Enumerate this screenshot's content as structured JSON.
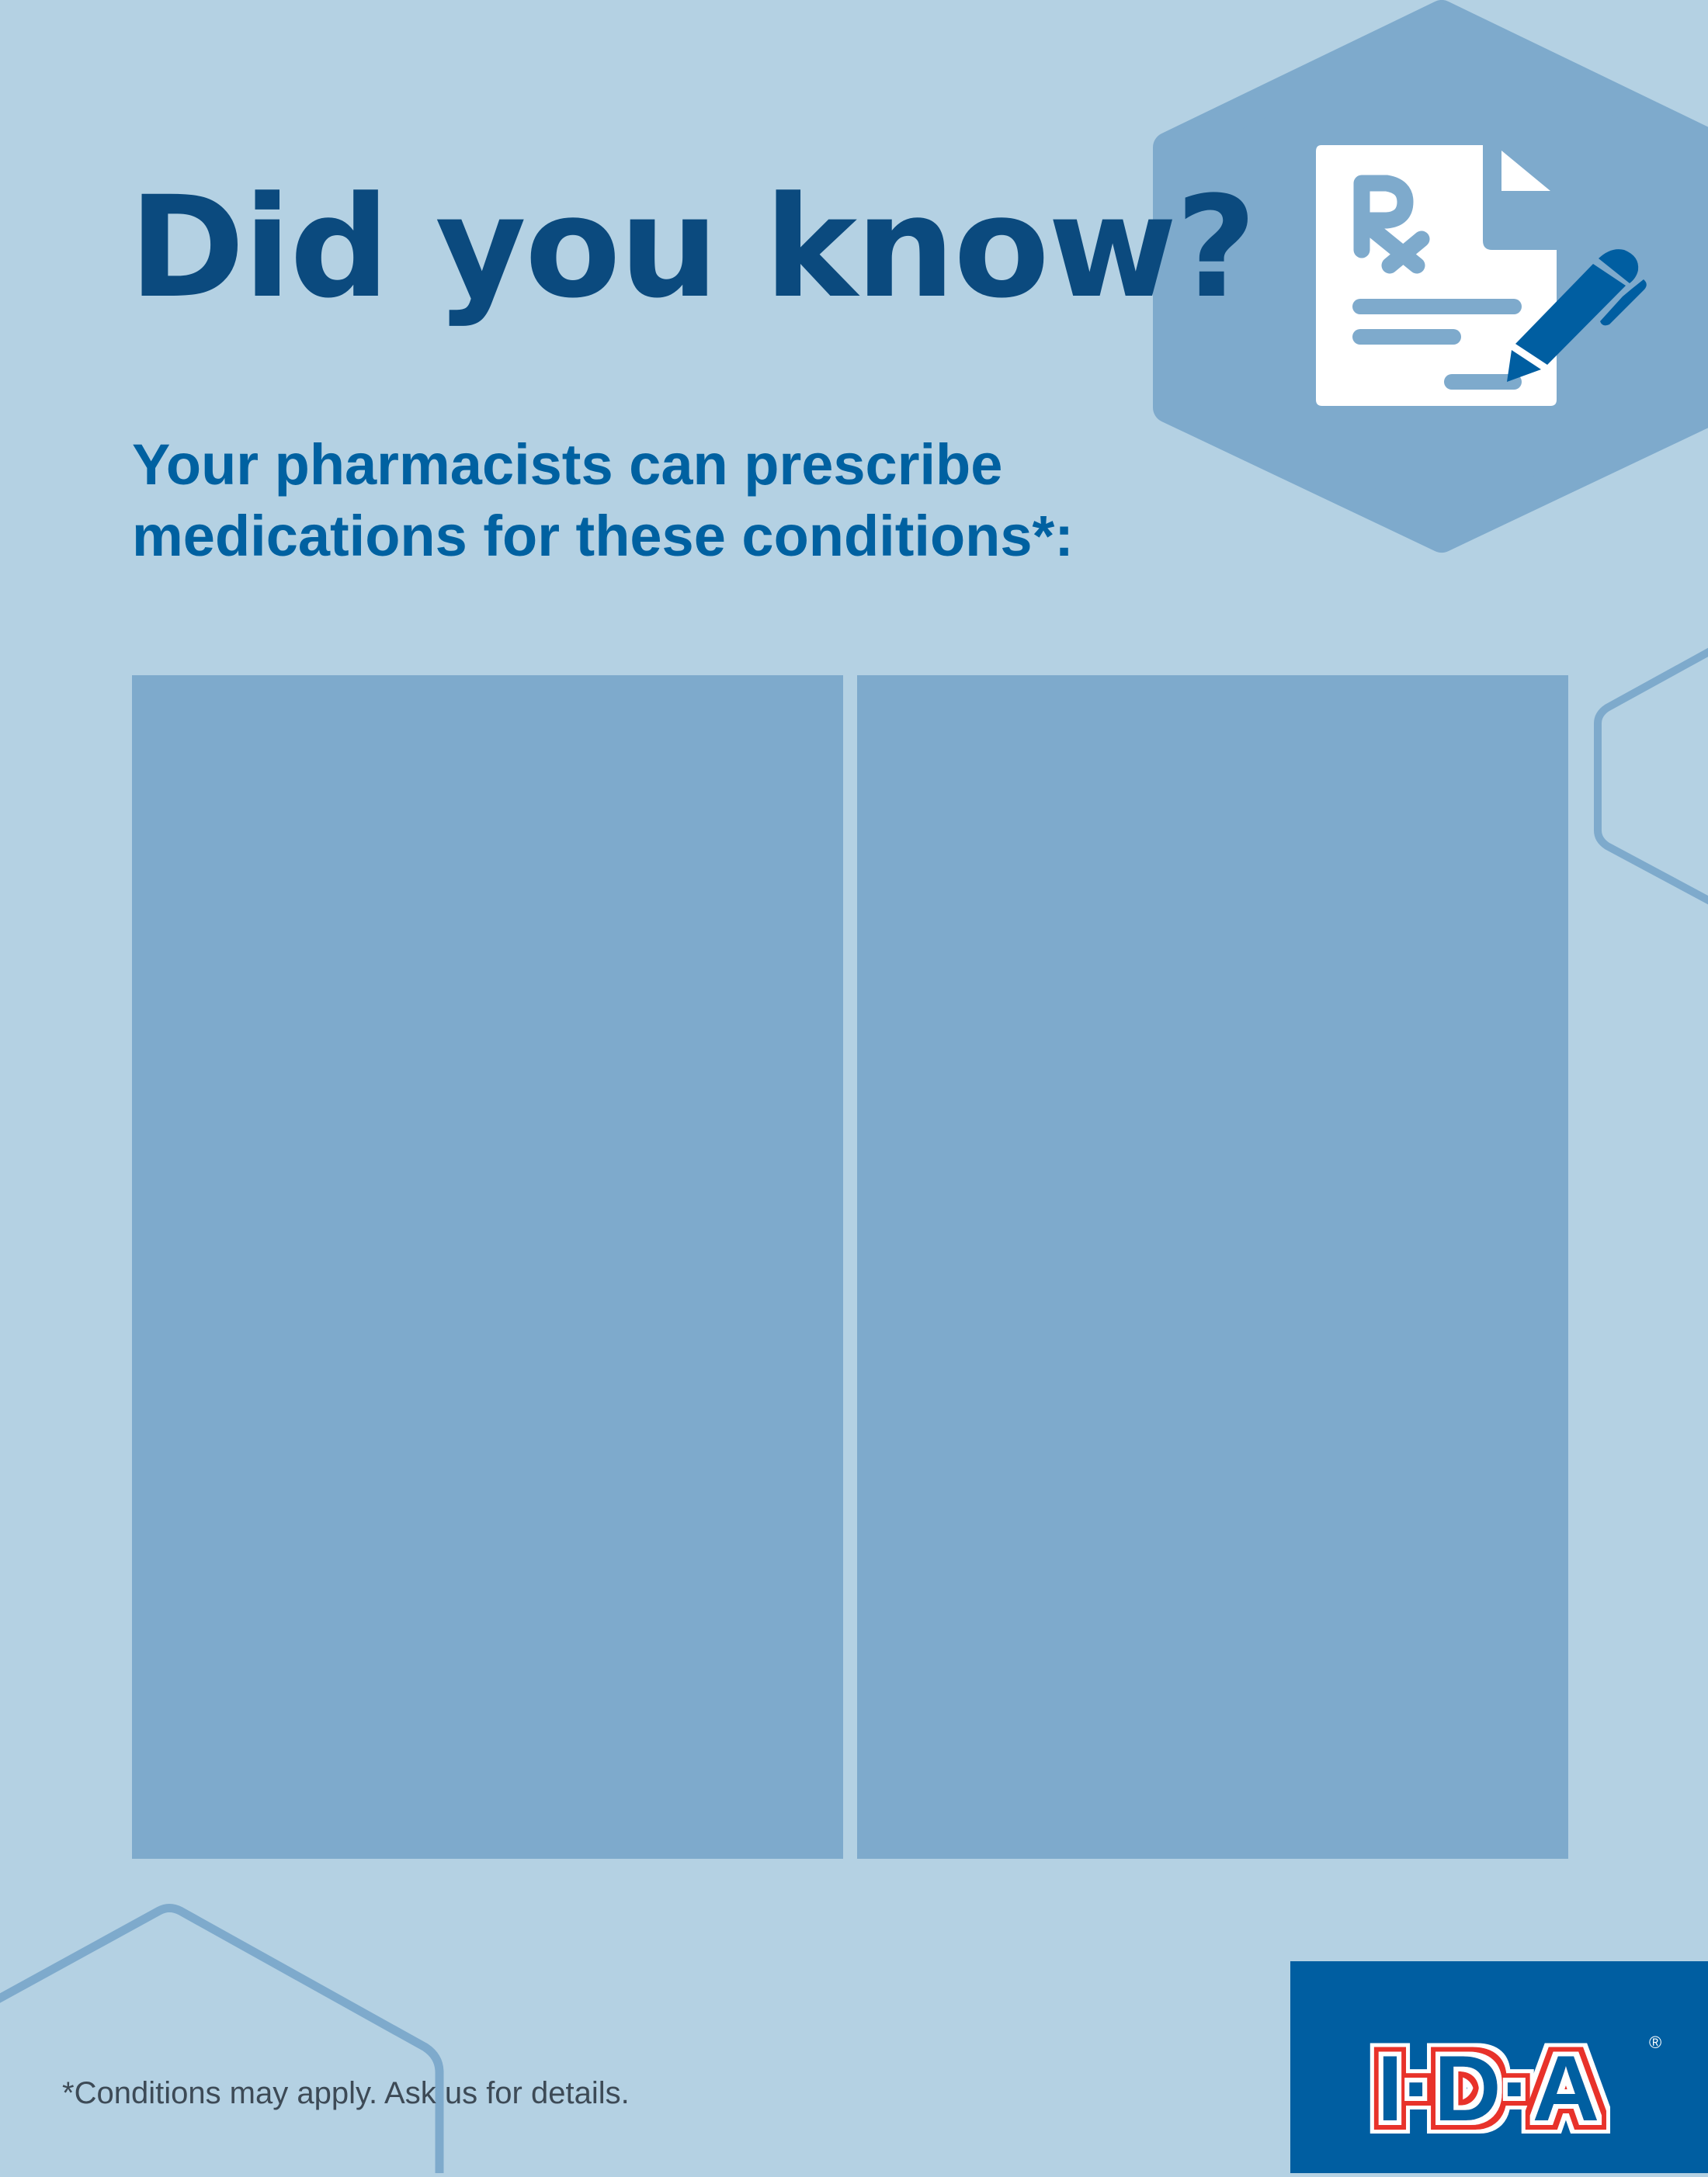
{
  "header": {
    "title": "Did you know?",
    "subtitle_line1": "Your pharmacists can prescribe",
    "subtitle_line2": "medications for these conditions*:"
  },
  "icon": {
    "name": "prescription-document-pen-icon",
    "rx_text": "Rx"
  },
  "panels": [
    {
      "name": "left-conditions-panel"
    },
    {
      "name": "right-conditions-panel"
    }
  ],
  "footer": {
    "disclaimer": "*Conditions may apply. Ask us for details."
  },
  "logo": {
    "text": "I·D·A",
    "registered": "®"
  },
  "colors": {
    "background": "#b4d1e3",
    "panel": "#7eaacc",
    "title": "#0b4a7e",
    "subtitle": "#0061a1",
    "logo_background": "#005ea1",
    "logo_red": "#e8312a"
  }
}
